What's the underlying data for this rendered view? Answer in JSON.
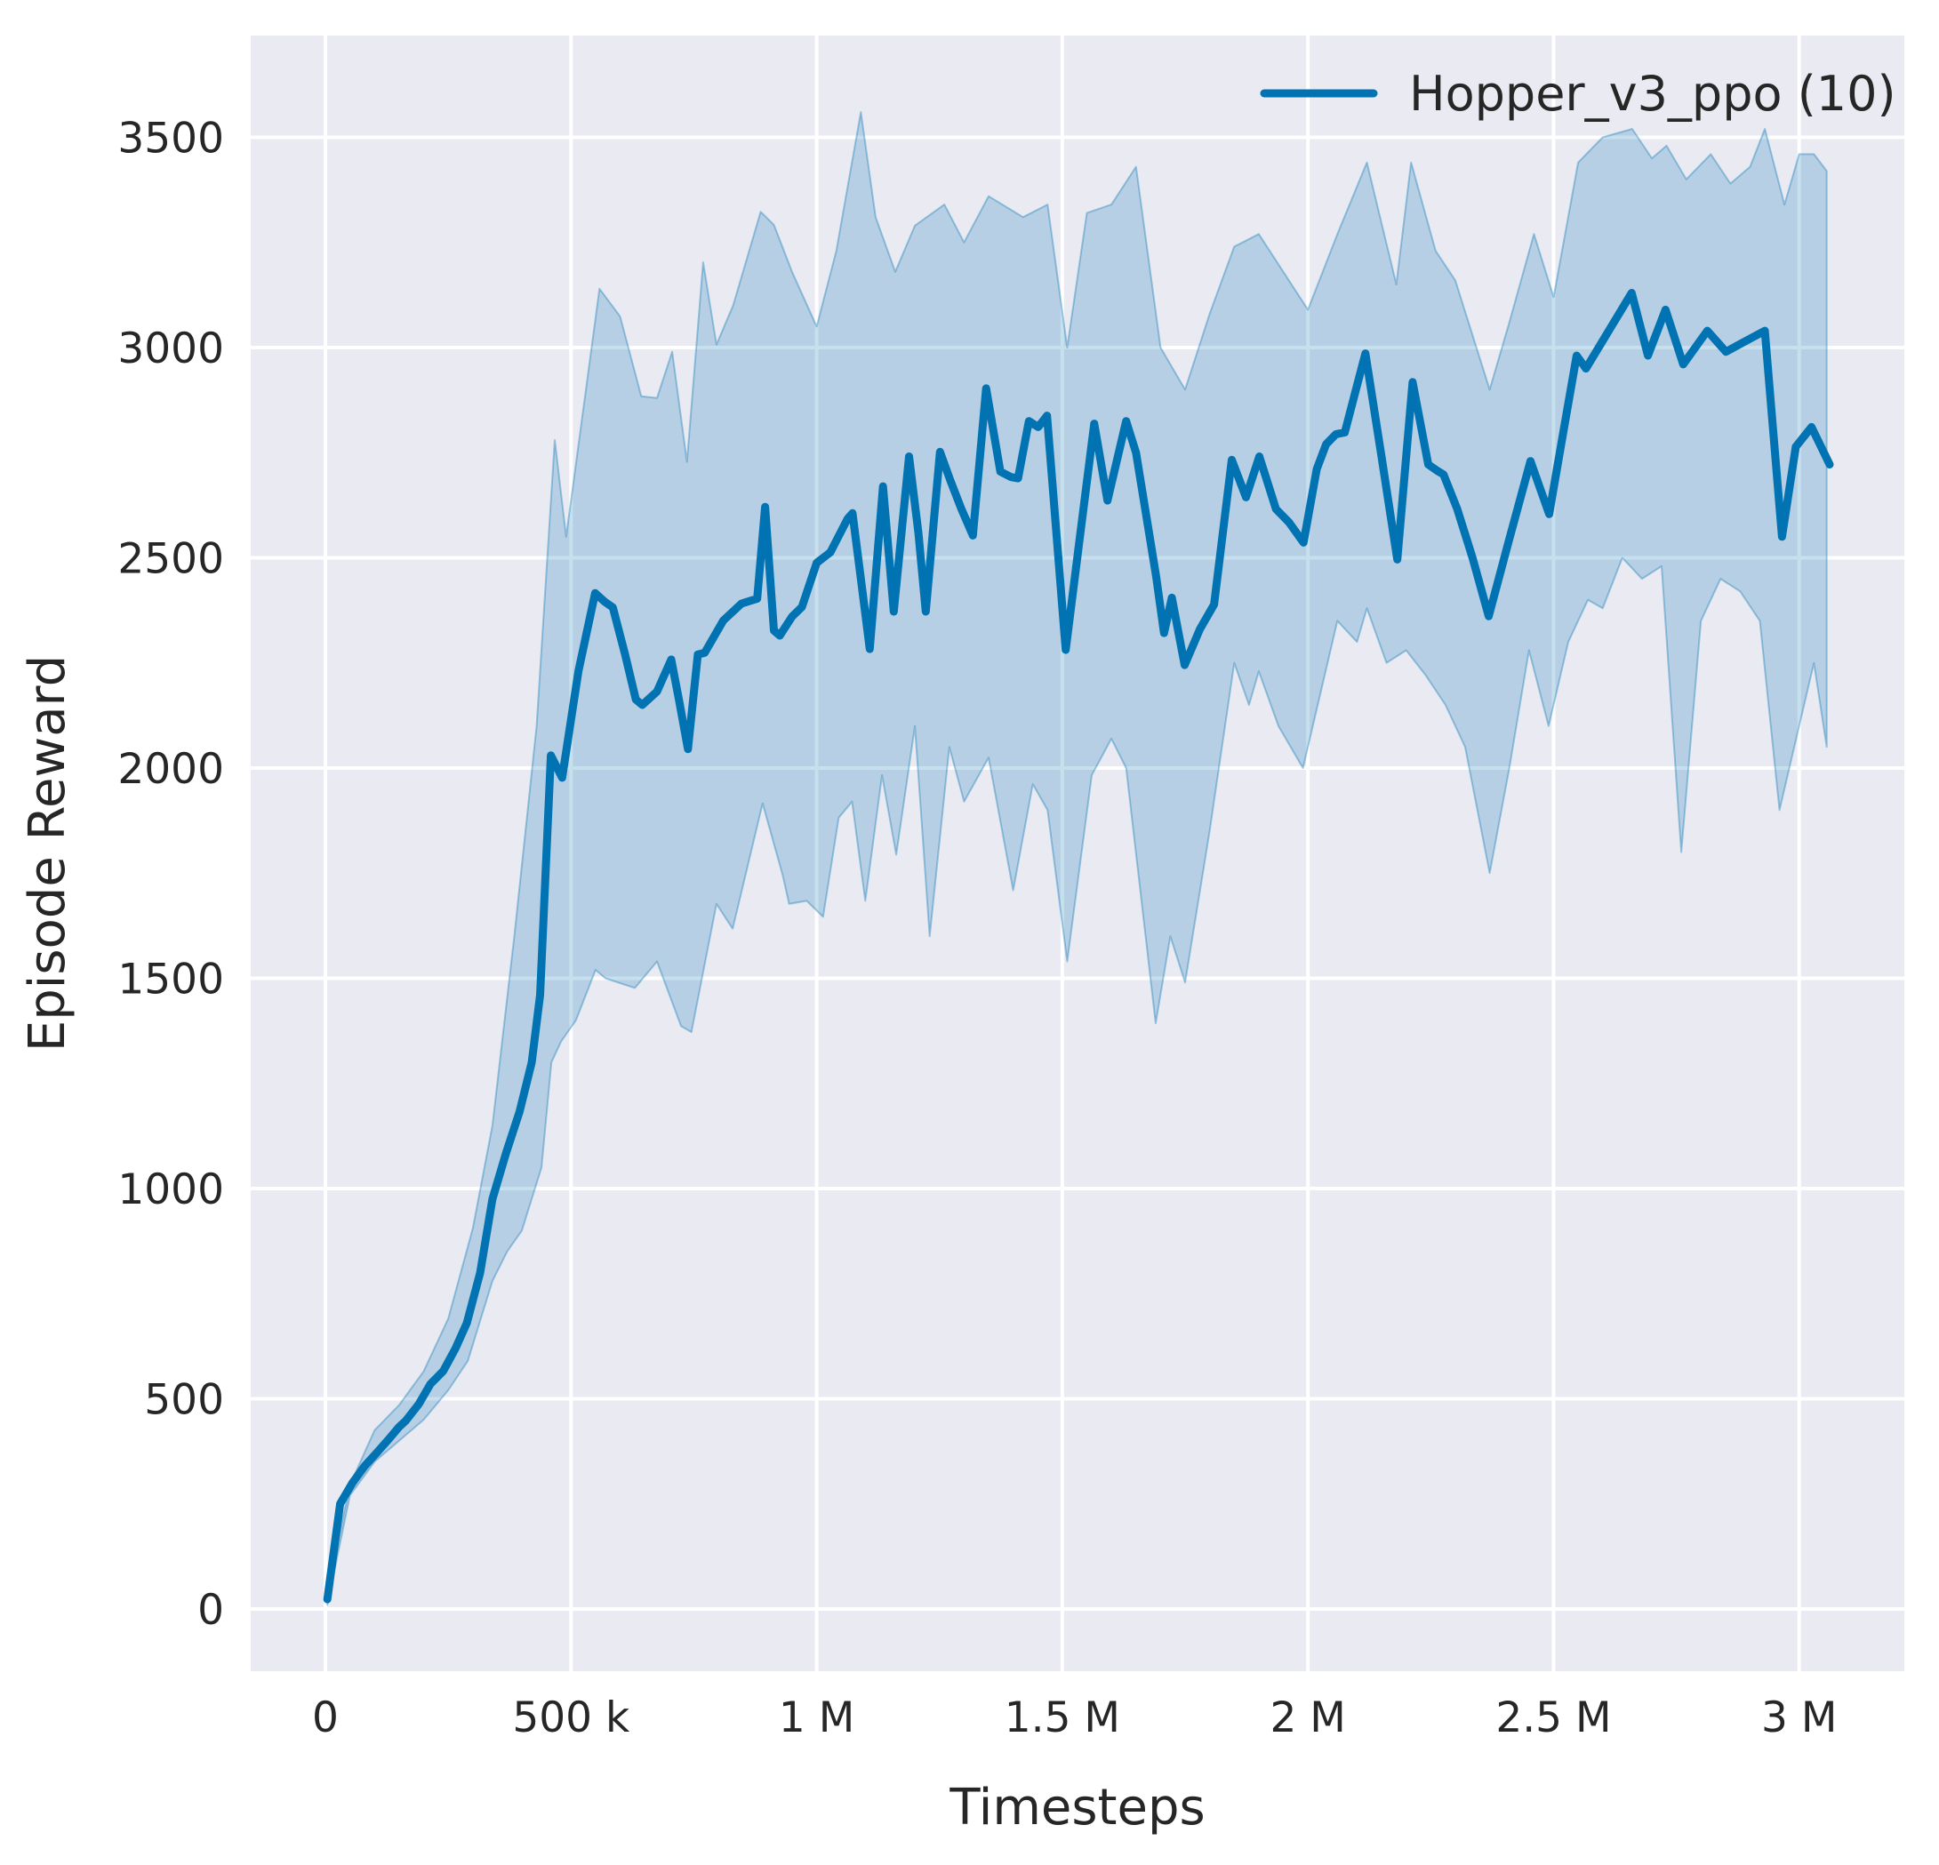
{
  "chart_data": {
    "type": "line",
    "title": "",
    "xlabel": "Timesteps",
    "ylabel": "Episode Reward",
    "legend_label": "Hopper_v3_ppo (10)",
    "legend_position": "upper right",
    "grid": true,
    "x_unit": "timesteps (millions)",
    "xlim": [
      -0.152,
      3.214
    ],
    "ylim": [
      -148,
      3742
    ],
    "x_ticks": [
      {
        "value": 0.0,
        "label": "0"
      },
      {
        "value": 0.5,
        "label": "500 k"
      },
      {
        "value": 1.0,
        "label": "1 M"
      },
      {
        "value": 1.5,
        "label": "1.5 M"
      },
      {
        "value": 2.0,
        "label": "2 M"
      },
      {
        "value": 2.5,
        "label": "2.5 M"
      },
      {
        "value": 3.0,
        "label": "3 M"
      }
    ],
    "y_ticks": [
      {
        "value": 0,
        "label": "0"
      },
      {
        "value": 500,
        "label": "500"
      },
      {
        "value": 1000,
        "label": "1000"
      },
      {
        "value": 1500,
        "label": "1500"
      },
      {
        "value": 2000,
        "label": "2000"
      },
      {
        "value": 2500,
        "label": "2500"
      },
      {
        "value": 3000,
        "label": "3000"
      },
      {
        "value": 3500,
        "label": "3500"
      }
    ],
    "series": [
      {
        "name": "Hopper_v3_ppo (10)",
        "points": [
          [
            0.004,
            23
          ],
          [
            0.03,
            250
          ],
          [
            0.055,
            300
          ],
          [
            0.08,
            340
          ],
          [
            0.105,
            372
          ],
          [
            0.13,
            405
          ],
          [
            0.15,
            433
          ],
          [
            0.163,
            447
          ],
          [
            0.19,
            487
          ],
          [
            0.214,
            535
          ],
          [
            0.24,
            566
          ],
          [
            0.265,
            620
          ],
          [
            0.288,
            680
          ],
          [
            0.315,
            800
          ],
          [
            0.34,
            975
          ],
          [
            0.368,
            1085
          ],
          [
            0.395,
            1182
          ],
          [
            0.42,
            1300
          ],
          [
            0.437,
            1460
          ],
          [
            0.459,
            2030
          ],
          [
            0.482,
            1977
          ],
          [
            0.515,
            2230
          ],
          [
            0.549,
            2416
          ],
          [
            0.569,
            2395
          ],
          [
            0.585,
            2382
          ],
          [
            0.61,
            2270
          ],
          [
            0.632,
            2163
          ],
          [
            0.645,
            2150
          ],
          [
            0.675,
            2182
          ],
          [
            0.704,
            2258
          ],
          [
            0.72,
            2160
          ],
          [
            0.738,
            2045
          ],
          [
            0.758,
            2270
          ],
          [
            0.772,
            2274
          ],
          [
            0.81,
            2351
          ],
          [
            0.847,
            2391
          ],
          [
            0.879,
            2403
          ],
          [
            0.895,
            2621
          ],
          [
            0.913,
            2327
          ],
          [
            0.925,
            2315
          ],
          [
            0.95,
            2360
          ],
          [
            0.97,
            2383
          ],
          [
            1.0,
            2488
          ],
          [
            1.028,
            2513
          ],
          [
            1.063,
            2593
          ],
          [
            1.073,
            2606
          ],
          [
            1.09,
            2450
          ],
          [
            1.108,
            2283
          ],
          [
            1.135,
            2670
          ],
          [
            1.157,
            2372
          ],
          [
            1.188,
            2741
          ],
          [
            1.207,
            2560
          ],
          [
            1.222,
            2372
          ],
          [
            1.251,
            2752
          ],
          [
            1.272,
            2684
          ],
          [
            1.295,
            2615
          ],
          [
            1.318,
            2553
          ],
          [
            1.345,
            2903
          ],
          [
            1.374,
            2705
          ],
          [
            1.396,
            2692
          ],
          [
            1.41,
            2689
          ],
          [
            1.432,
            2825
          ],
          [
            1.451,
            2811
          ],
          [
            1.469,
            2838
          ],
          [
            1.507,
            2281
          ],
          [
            1.537,
            2560
          ],
          [
            1.565,
            2819
          ],
          [
            1.592,
            2636
          ],
          [
            1.63,
            2825
          ],
          [
            1.65,
            2750
          ],
          [
            1.691,
            2456
          ],
          [
            1.707,
            2321
          ],
          [
            1.723,
            2405
          ],
          [
            1.749,
            2245
          ],
          [
            1.78,
            2330
          ],
          [
            1.809,
            2389
          ],
          [
            1.845,
            2733
          ],
          [
            1.874,
            2644
          ],
          [
            1.901,
            2741
          ],
          [
            1.935,
            2616
          ],
          [
            1.961,
            2585
          ],
          [
            1.991,
            2536
          ],
          [
            2.018,
            2711
          ],
          [
            2.037,
            2770
          ],
          [
            2.057,
            2794
          ],
          [
            2.075,
            2798
          ],
          [
            2.117,
            2986
          ],
          [
            2.15,
            2740
          ],
          [
            2.182,
            2496
          ],
          [
            2.213,
            2918
          ],
          [
            2.245,
            2722
          ],
          [
            2.262,
            2708
          ],
          [
            2.276,
            2698
          ],
          [
            2.304,
            2616
          ],
          [
            2.335,
            2500
          ],
          [
            2.368,
            2361
          ],
          [
            2.408,
            2536
          ],
          [
            2.453,
            2730
          ],
          [
            2.491,
            2604
          ],
          [
            2.52,
            2800
          ],
          [
            2.547,
            2981
          ],
          [
            2.566,
            2950
          ],
          [
            2.615,
            3045
          ],
          [
            2.659,
            3130
          ],
          [
            2.692,
            2981
          ],
          [
            2.728,
            3090
          ],
          [
            2.764,
            2960
          ],
          [
            2.813,
            3040
          ],
          [
            2.851,
            2990
          ],
          [
            2.89,
            3015
          ],
          [
            2.93,
            3040
          ],
          [
            2.965,
            2550
          ],
          [
            2.993,
            2764
          ],
          [
            3.025,
            2811
          ],
          [
            3.062,
            2722
          ]
        ]
      }
    ],
    "band": {
      "name": "confidence band (min/max over 10 runs)",
      "upper": [
        [
          0.004,
          40
        ],
        [
          0.05,
          295
        ],
        [
          0.1,
          425
        ],
        [
          0.15,
          485
        ],
        [
          0.2,
          565
        ],
        [
          0.25,
          690
        ],
        [
          0.3,
          905
        ],
        [
          0.34,
          1150
        ],
        [
          0.385,
          1604
        ],
        [
          0.43,
          2100
        ],
        [
          0.467,
          2780
        ],
        [
          0.49,
          2550
        ],
        [
          0.558,
          3140
        ],
        [
          0.6,
          3074
        ],
        [
          0.643,
          2884
        ],
        [
          0.675,
          2880
        ],
        [
          0.706,
          2990
        ],
        [
          0.736,
          2728
        ],
        [
          0.769,
          3203
        ],
        [
          0.796,
          3007
        ],
        [
          0.83,
          3100
        ],
        [
          0.886,
          3323
        ],
        [
          0.913,
          3292
        ],
        [
          0.95,
          3180
        ],
        [
          1.0,
          3050
        ],
        [
          1.04,
          3230
        ],
        [
          1.09,
          3560
        ],
        [
          1.12,
          3310
        ],
        [
          1.16,
          3180
        ],
        [
          1.2,
          3290
        ],
        [
          1.26,
          3340
        ],
        [
          1.3,
          3250
        ],
        [
          1.35,
          3360
        ],
        [
          1.42,
          3310
        ],
        [
          1.47,
          3340
        ],
        [
          1.51,
          3000
        ],
        [
          1.55,
          3320
        ],
        [
          1.6,
          3340
        ],
        [
          1.65,
          3430
        ],
        [
          1.7,
          3000
        ],
        [
          1.75,
          2900
        ],
        [
          1.8,
          3080
        ],
        [
          1.85,
          3240
        ],
        [
          1.9,
          3270
        ],
        [
          1.95,
          3180
        ],
        [
          2.0,
          3090
        ],
        [
          2.06,
          3270
        ],
        [
          2.12,
          3440
        ],
        [
          2.18,
          3150
        ],
        [
          2.21,
          3440
        ],
        [
          2.26,
          3230
        ],
        [
          2.3,
          3160
        ],
        [
          2.37,
          2900
        ],
        [
          2.41,
          3060
        ],
        [
          2.46,
          3270
        ],
        [
          2.5,
          3120
        ],
        [
          2.55,
          3440
        ],
        [
          2.6,
          3500
        ],
        [
          2.66,
          3520
        ],
        [
          2.7,
          3450
        ],
        [
          2.73,
          3480
        ],
        [
          2.77,
          3400
        ],
        [
          2.82,
          3460
        ],
        [
          2.86,
          3390
        ],
        [
          2.9,
          3430
        ],
        [
          2.93,
          3520
        ],
        [
          2.97,
          3340
        ],
        [
          3.0,
          3460
        ],
        [
          3.03,
          3460
        ],
        [
          3.056,
          3420
        ]
      ],
      "lower": [
        [
          0.004,
          10
        ],
        [
          0.05,
          270
        ],
        [
          0.1,
          350
        ],
        [
          0.15,
          400
        ],
        [
          0.2,
          450
        ],
        [
          0.25,
          520
        ],
        [
          0.29,
          590
        ],
        [
          0.34,
          780
        ],
        [
          0.37,
          850
        ],
        [
          0.4,
          900
        ],
        [
          0.44,
          1050
        ],
        [
          0.46,
          1300
        ],
        [
          0.48,
          1350
        ],
        [
          0.51,
          1400
        ],
        [
          0.55,
          1520
        ],
        [
          0.57,
          1500
        ],
        [
          0.63,
          1477
        ],
        [
          0.675,
          1540
        ],
        [
          0.724,
          1386
        ],
        [
          0.745,
          1372
        ],
        [
          0.796,
          1677
        ],
        [
          0.829,
          1618
        ],
        [
          0.89,
          1916
        ],
        [
          0.931,
          1745
        ],
        [
          0.944,
          1677
        ],
        [
          0.98,
          1684
        ],
        [
          1.013,
          1646
        ],
        [
          1.045,
          1882
        ],
        [
          1.072,
          1920
        ],
        [
          1.099,
          1684
        ],
        [
          1.133,
          1983
        ],
        [
          1.162,
          1794
        ],
        [
          1.2,
          2100
        ],
        [
          1.23,
          1600
        ],
        [
          1.27,
          2050
        ],
        [
          1.3,
          1920
        ],
        [
          1.35,
          2025
        ],
        [
          1.4,
          1709
        ],
        [
          1.44,
          1962
        ],
        [
          1.47,
          1900
        ],
        [
          1.51,
          1540
        ],
        [
          1.56,
          1983
        ],
        [
          1.6,
          2070
        ],
        [
          1.63,
          2000
        ],
        [
          1.69,
          1393
        ],
        [
          1.72,
          1600
        ],
        [
          1.75,
          1490
        ],
        [
          1.8,
          1850
        ],
        [
          1.85,
          2250
        ],
        [
          1.88,
          2150
        ],
        [
          1.9,
          2230
        ],
        [
          1.94,
          2100
        ],
        [
          1.99,
          2000
        ],
        [
          2.03,
          2200
        ],
        [
          2.06,
          2350
        ],
        [
          2.1,
          2300
        ],
        [
          2.12,
          2380
        ],
        [
          2.16,
          2250
        ],
        [
          2.2,
          2280
        ],
        [
          2.24,
          2220
        ],
        [
          2.28,
          2150
        ],
        [
          2.32,
          2050
        ],
        [
          2.37,
          1750
        ],
        [
          2.41,
          2000
        ],
        [
          2.45,
          2280
        ],
        [
          2.49,
          2100
        ],
        [
          2.53,
          2300
        ],
        [
          2.57,
          2400
        ],
        [
          2.6,
          2380
        ],
        [
          2.64,
          2500
        ],
        [
          2.68,
          2450
        ],
        [
          2.72,
          2480
        ],
        [
          2.76,
          1800
        ],
        [
          2.8,
          2350
        ],
        [
          2.84,
          2450
        ],
        [
          2.88,
          2420
        ],
        [
          2.92,
          2350
        ],
        [
          2.96,
          1900
        ],
        [
          3.0,
          2100
        ],
        [
          3.03,
          2250
        ],
        [
          3.056,
          2050
        ]
      ]
    },
    "colors": {
      "line": "#0173b2",
      "band_fill": "#0173b2",
      "band_alpha": 0.22,
      "band_edge_alpha": 0.35,
      "plot_background": "#eaeaf2",
      "grid": "#ffffff",
      "text": "#262626"
    }
  }
}
